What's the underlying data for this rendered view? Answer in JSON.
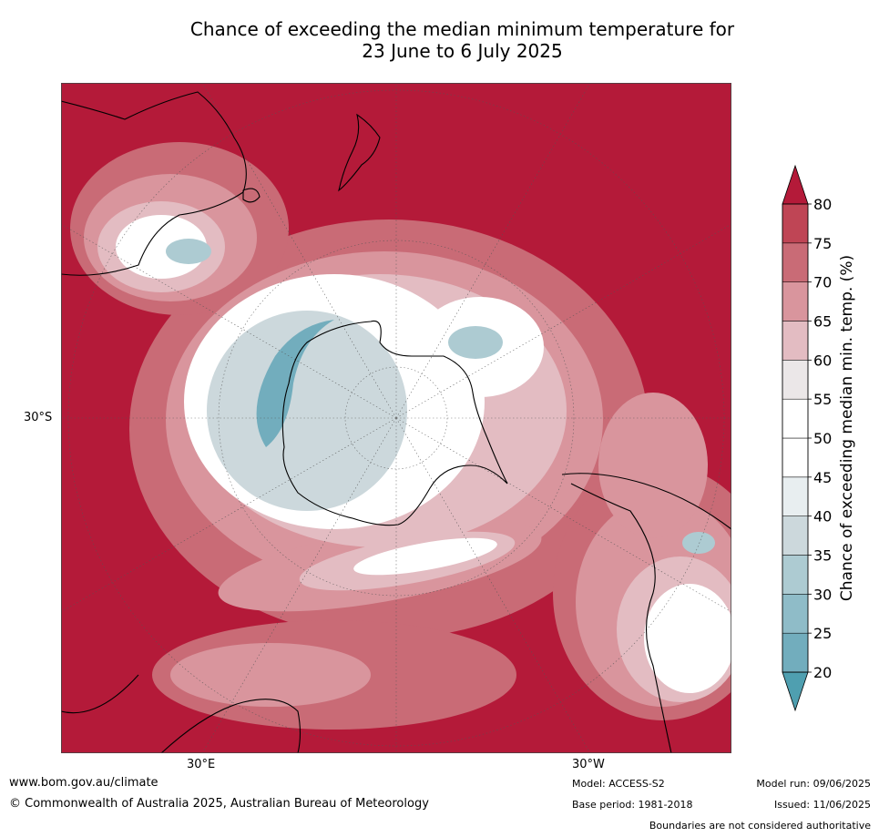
{
  "title_line1": "Chance of exceeding the median minimum temperature for",
  "title_line2": "23 June to 6 July 2025",
  "map_labels": {
    "lat_30s": "30°S",
    "lon_30e": "30°E",
    "lon_30w": "30°W"
  },
  "colorbar": {
    "label": "Chance of exceeding median min. temp. (%)",
    "ticks": [
      "20",
      "25",
      "30",
      "35",
      "40",
      "45",
      "50",
      "55",
      "60",
      "65",
      "70",
      "75",
      "80"
    ],
    "colors": [
      "#4f9fb0",
      "#72adbd",
      "#8fbcc8",
      "#adcbd2",
      "#ccd8dc",
      "#e8eef0",
      "#ffffff",
      "#ffffff",
      "#ebe7e8",
      "#e3bcc2",
      "#d9959d",
      "#c96b76",
      "#bf4555",
      "#b41a39"
    ],
    "extend": "both"
  },
  "palette": {
    "hot": "#b41a39",
    "warm": "#c96b76",
    "neutral": "#ffffff",
    "cool": "#72adbd",
    "coast": "#000000"
  },
  "footer": {
    "url": "www.bom.gov.au/climate",
    "copyright": "© Commonwealth of Australia 2025, Australian Bureau of Meteorology",
    "model": "Model: ACCESS-S2",
    "base_period": "Base period: 1981-2018",
    "model_run": "Model run: 09/06/2025",
    "issued": "Issued: 11/06/2025",
    "disclaimer": "Boundaries are not considered authoritative"
  }
}
